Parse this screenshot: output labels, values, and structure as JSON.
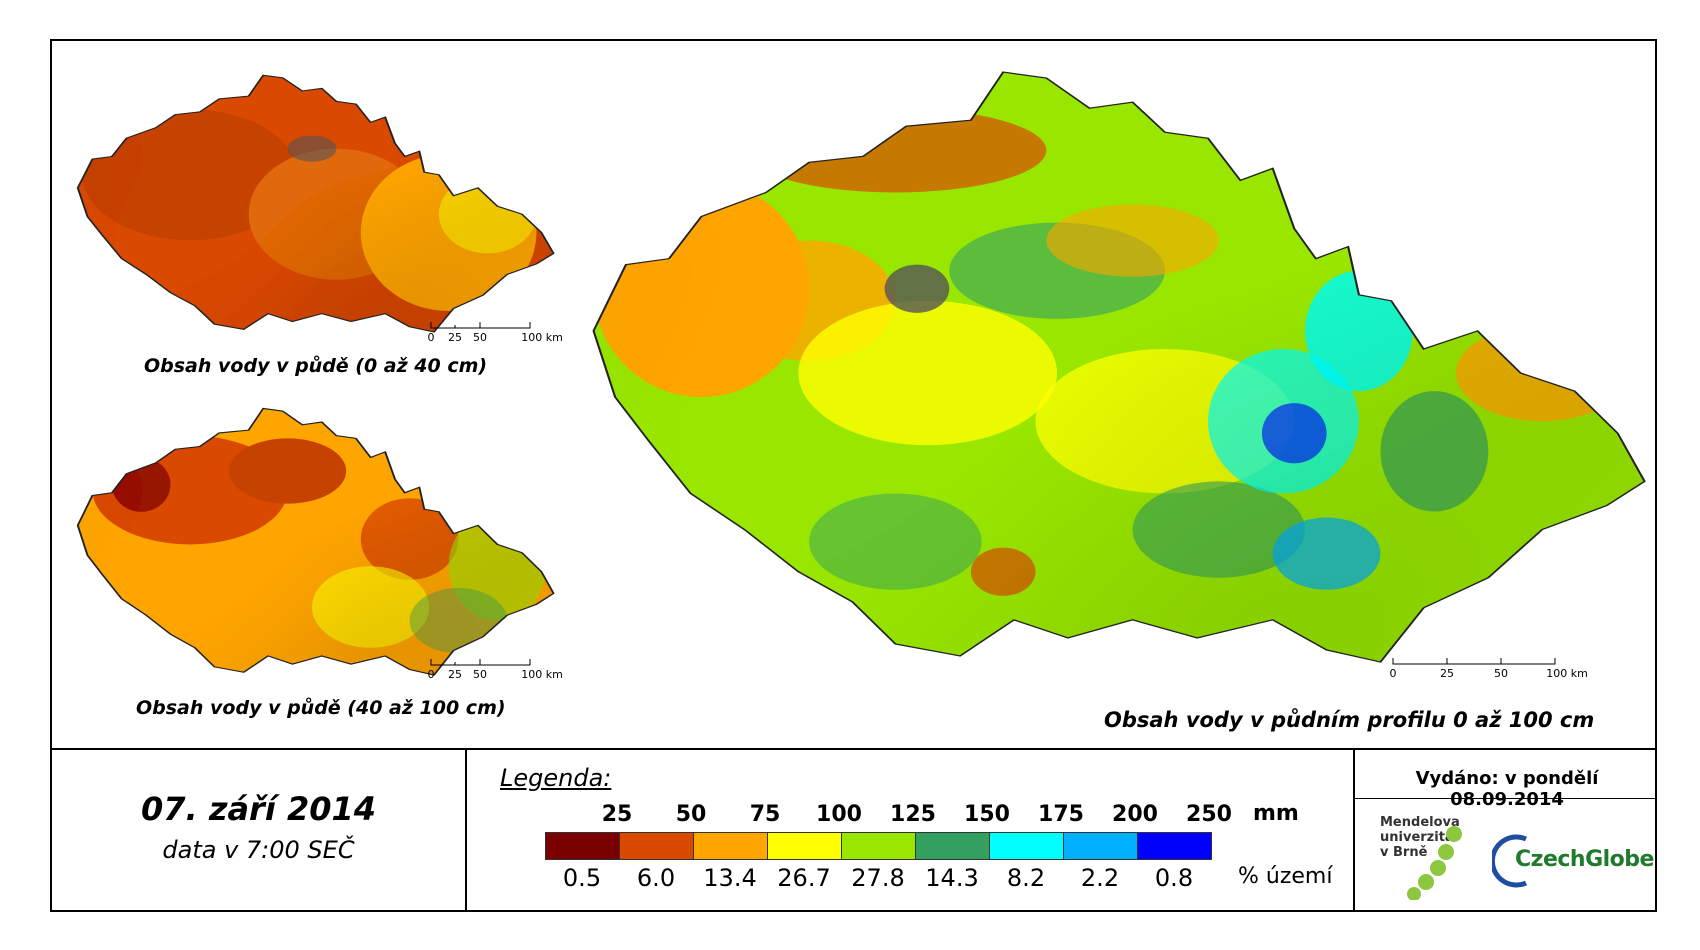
{
  "maps": {
    "small_top": {
      "caption": "Obsah vody v půdě (0 až 40 cm)",
      "scale_labels": [
        "0",
        "25",
        "50",
        "100 km"
      ]
    },
    "small_bottom": {
      "caption": "Obsah vody v půdě (40 až 100 cm)",
      "scale_labels": [
        "0",
        "25",
        "50",
        "100 km"
      ]
    },
    "main": {
      "caption": "Obsah vody v půdním profilu 0 až 100 cm",
      "scale_labels": [
        "0",
        "25",
        "50",
        "100 km"
      ]
    }
  },
  "date": {
    "title": "07. září 2014",
    "subtitle": "data v 7:00 SEČ"
  },
  "legend": {
    "title": "Legenda:",
    "unit_top": "mm",
    "unit_bottom": "% území",
    "thresholds": [
      "25",
      "50",
      "75",
      "100",
      "125",
      "150",
      "175",
      "200",
      "250"
    ],
    "classes": [
      {
        "color": "#7a0000",
        "percent": "0.5"
      },
      {
        "color": "#d94a00",
        "percent": "6.0"
      },
      {
        "color": "#ffa500",
        "percent": "13.4"
      },
      {
        "color": "#ffff00",
        "percent": "26.7"
      },
      {
        "color": "#99e600",
        "percent": "27.8"
      },
      {
        "color": "#33a060",
        "percent": "14.3"
      },
      {
        "color": "#00ffff",
        "percent": "8.2"
      },
      {
        "color": "#00b0ff",
        "percent": "2.2"
      },
      {
        "color": "#0000ff",
        "percent": "0.8"
      }
    ]
  },
  "issued": "Vydáno: v pondělí 08.09.2014",
  "logos": {
    "mendel_lines": [
      "Mendelova",
      "univerzita",
      "v Brně"
    ],
    "czechglobe": "CzechGlobe"
  }
}
